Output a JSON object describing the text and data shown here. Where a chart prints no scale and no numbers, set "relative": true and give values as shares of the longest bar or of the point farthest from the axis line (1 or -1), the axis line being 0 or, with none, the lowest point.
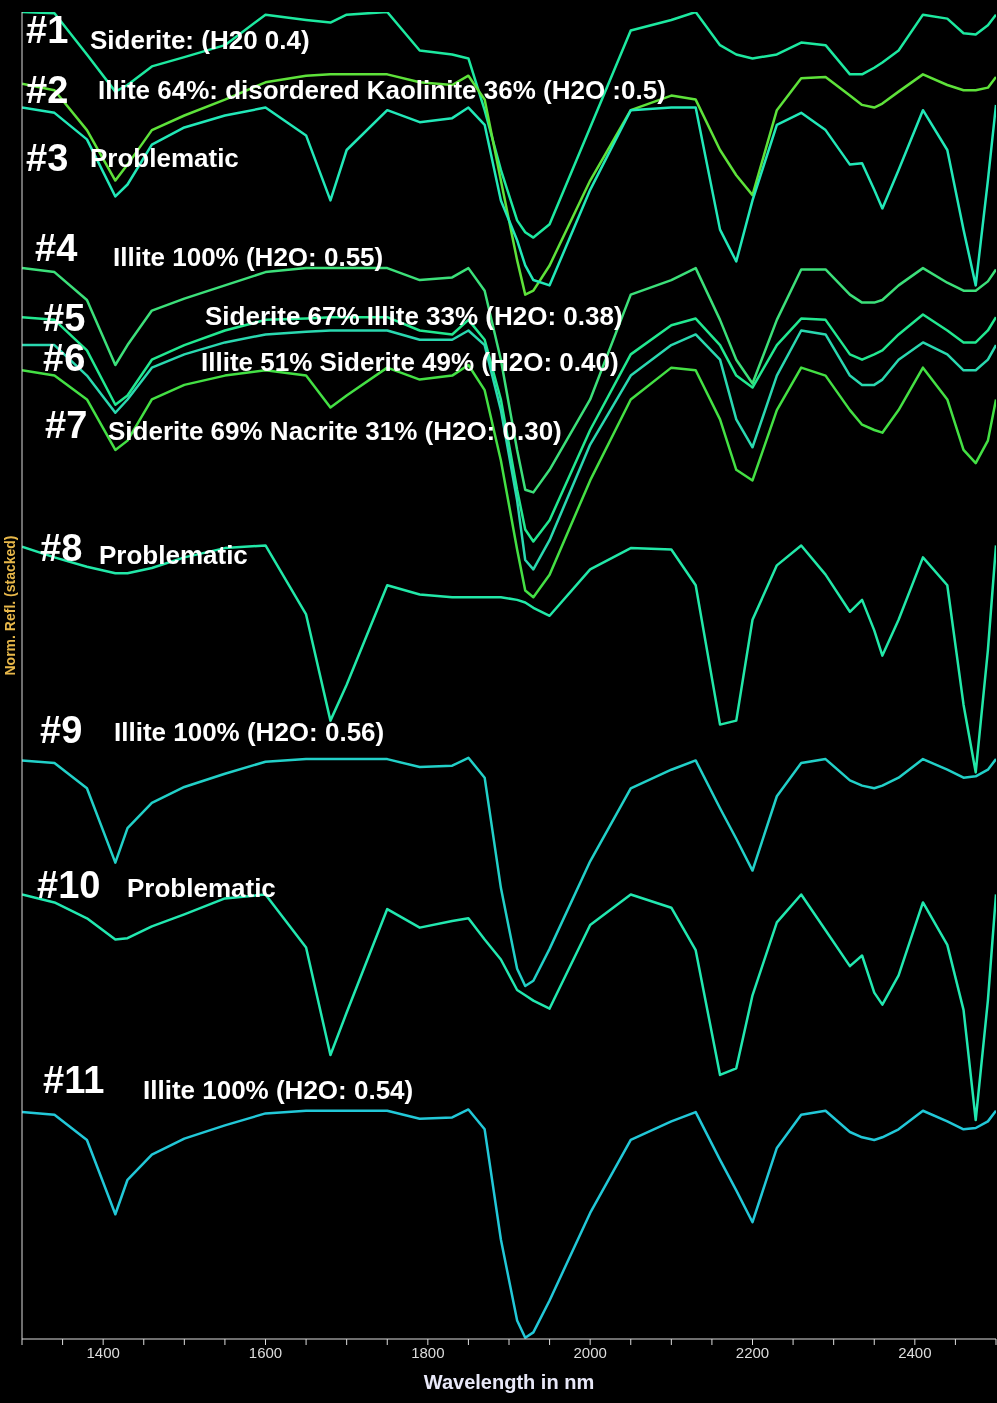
{
  "chart_data": {
    "type": "line",
    "relative": true,
    "xlabel": "Wavelength in nm",
    "ylabel": "Norm. Refl. (stacked)",
    "xlim": [
      1300,
      2500
    ],
    "xticks": [
      {
        "value": 1300,
        "label": null
      },
      {
        "value": 1350,
        "label": null
      },
      1400,
      {
        "value": 1450,
        "label": null
      },
      {
        "value": 1500,
        "label": null
      },
      {
        "value": 1550,
        "label": null
      },
      1600,
      {
        "value": 1650,
        "label": null
      },
      {
        "value": 1700,
        "label": null
      },
      {
        "value": 1750,
        "label": null
      },
      1800,
      {
        "value": 1850,
        "label": null
      },
      {
        "value": 1900,
        "label": null
      },
      {
        "value": 1950,
        "label": null
      },
      2000,
      {
        "value": 2050,
        "label": null
      },
      {
        "value": 2100,
        "label": null
      },
      {
        "value": 2150,
        "label": null
      },
      2200,
      {
        "value": 2250,
        "label": null
      },
      {
        "value": 2300,
        "label": null
      },
      {
        "value": 2350,
        "label": null
      },
      2400,
      {
        "value": 2450,
        "label": null
      },
      {
        "value": 2500,
        "label": null
      }
    ],
    "x": [
      1300,
      1340,
      1380,
      1415,
      1430,
      1460,
      1500,
      1550,
      1600,
      1650,
      1680,
      1700,
      1750,
      1790,
      1830,
      1850,
      1870,
      1890,
      1910,
      1920,
      1930,
      1950,
      2000,
      2050,
      2100,
      2130,
      2160,
      2180,
      2200,
      2230,
      2260,
      2290,
      2320,
      2335,
      2350,
      2360,
      2380,
      2410,
      2440,
      2460,
      2475,
      2490,
      2500
    ],
    "series": [
      {
        "name": "#1",
        "color": "#1de9a0",
        "values": [
          1.0,
          0.999,
          0.968,
          0.94,
          0.945,
          0.959,
          0.966,
          0.975,
          0.998,
          0.994,
          0.992,
          0.998,
          1.0,
          0.971,
          0.968,
          0.965,
          0.926,
          0.881,
          0.843,
          0.834,
          0.83,
          0.84,
          0.913,
          0.986,
          0.994,
          1.0,
          0.975,
          0.968,
          0.965,
          0.968,
          0.977,
          0.975,
          0.953,
          0.953,
          0.958,
          0.962,
          0.971,
          0.998,
          0.995,
          0.984,
          0.983,
          0.99,
          0.998
        ]
      },
      {
        "name": "#2",
        "color": "#5ee23a",
        "values": [
          0.946,
          0.941,
          0.911,
          0.873,
          0.885,
          0.911,
          0.922,
          0.934,
          0.947,
          0.952,
          0.953,
          0.953,
          0.953,
          0.947,
          0.945,
          0.952,
          0.934,
          0.873,
          0.813,
          0.787,
          0.79,
          0.809,
          0.873,
          0.926,
          0.937,
          0.934,
          0.896,
          0.877,
          0.862,
          0.926,
          0.95,
          0.951,
          0.937,
          0.93,
          0.928,
          0.931,
          0.94,
          0.953,
          0.945,
          0.941,
          0.941,
          0.943,
          0.951
        ]
      },
      {
        "name": "#3",
        "color": "#22e8b8",
        "values": [
          0.928,
          0.924,
          0.904,
          0.861,
          0.87,
          0.9,
          0.913,
          0.922,
          0.928,
          0.907,
          0.858,
          0.896,
          0.926,
          0.917,
          0.92,
          0.928,
          0.915,
          0.858,
          0.828,
          0.809,
          0.798,
          0.794,
          0.866,
          0.926,
          0.928,
          0.928,
          0.836,
          0.812,
          0.858,
          0.915,
          0.924,
          0.911,
          0.885,
          0.886,
          0.866,
          0.852,
          0.881,
          0.926,
          0.896,
          0.836,
          0.794,
          0.873,
          0.93
        ]
      },
      {
        "name": "#4",
        "color": "#3ce07a",
        "values": [
          0.807,
          0.804,
          0.783,
          0.734,
          0.749,
          0.775,
          0.784,
          0.794,
          0.804,
          0.807,
          0.807,
          0.807,
          0.807,
          0.798,
          0.8,
          0.807,
          0.79,
          0.738,
          0.67,
          0.64,
          0.638,
          0.655,
          0.708,
          0.787,
          0.798,
          0.807,
          0.768,
          0.738,
          0.72,
          0.768,
          0.806,
          0.806,
          0.787,
          0.781,
          0.781,
          0.783,
          0.794,
          0.807,
          0.796,
          0.79,
          0.79,
          0.797,
          0.806
        ]
      },
      {
        "name": "#5",
        "color": "#22e890",
        "values": [
          0.77,
          0.768,
          0.745,
          0.704,
          0.711,
          0.738,
          0.749,
          0.76,
          0.768,
          0.769,
          0.77,
          0.77,
          0.77,
          0.76,
          0.757,
          0.768,
          0.753,
          0.708,
          0.64,
          0.61,
          0.601,
          0.617,
          0.685,
          0.742,
          0.764,
          0.769,
          0.749,
          0.726,
          0.717,
          0.749,
          0.769,
          0.768,
          0.742,
          0.738,
          0.742,
          0.745,
          0.757,
          0.772,
          0.76,
          0.751,
          0.751,
          0.76,
          0.77
        ]
      },
      {
        "name": "#6",
        "color": "#2ad8b0",
        "values": [
          0.749,
          0.749,
          0.726,
          0.698,
          0.708,
          0.732,
          0.742,
          0.751,
          0.757,
          0.759,
          0.76,
          0.76,
          0.76,
          0.753,
          0.753,
          0.76,
          0.749,
          0.7,
          0.632,
          0.587,
          0.58,
          0.602,
          0.674,
          0.726,
          0.749,
          0.757,
          0.738,
          0.693,
          0.672,
          0.726,
          0.76,
          0.757,
          0.726,
          0.719,
          0.719,
          0.723,
          0.738,
          0.751,
          0.742,
          0.73,
          0.73,
          0.738,
          0.749
        ]
      },
      {
        "name": "#7",
        "color": "#44e044",
        "values": [
          0.73,
          0.726,
          0.708,
          0.67,
          0.677,
          0.708,
          0.719,
          0.726,
          0.73,
          0.726,
          0.702,
          0.711,
          0.732,
          0.723,
          0.726,
          0.734,
          0.715,
          0.662,
          0.595,
          0.564,
          0.559,
          0.576,
          0.647,
          0.708,
          0.732,
          0.73,
          0.693,
          0.655,
          0.647,
          0.7,
          0.732,
          0.726,
          0.7,
          0.689,
          0.685,
          0.683,
          0.7,
          0.732,
          0.708,
          0.67,
          0.66,
          0.677,
          0.708
        ]
      },
      {
        "name": "#8",
        "color": "#22e8a8",
        "values": [
          0.597,
          0.589,
          0.582,
          0.577,
          0.577,
          0.581,
          0.589,
          0.596,
          0.598,
          0.546,
          0.466,
          0.493,
          0.568,
          0.561,
          0.559,
          0.559,
          0.559,
          0.559,
          0.557,
          0.555,
          0.551,
          0.545,
          0.58,
          0.596,
          0.595,
          0.568,
          0.463,
          0.466,
          0.542,
          0.583,
          0.598,
          0.576,
          0.548,
          0.557,
          0.534,
          0.515,
          0.542,
          0.589,
          0.568,
          0.478,
          0.427,
          0.519,
          0.598
        ]
      },
      {
        "name": "#9",
        "color": "#22d0c8",
        "values": [
          0.436,
          0.434,
          0.415,
          0.359,
          0.385,
          0.404,
          0.416,
          0.426,
          0.435,
          0.437,
          0.437,
          0.437,
          0.437,
          0.431,
          0.432,
          0.438,
          0.423,
          0.34,
          0.279,
          0.266,
          0.27,
          0.294,
          0.36,
          0.415,
          0.429,
          0.436,
          0.4,
          0.377,
          0.353,
          0.409,
          0.434,
          0.437,
          0.421,
          0.417,
          0.415,
          0.417,
          0.423,
          0.437,
          0.429,
          0.423,
          0.424,
          0.429,
          0.437
        ]
      },
      {
        "name": "#10",
        "color": "#22e8b0",
        "values": [
          0.335,
          0.329,
          0.317,
          0.301,
          0.302,
          0.311,
          0.32,
          0.332,
          0.335,
          0.295,
          0.214,
          0.246,
          0.324,
          0.31,
          0.315,
          0.317,
          0.301,
          0.286,
          0.263,
          0.259,
          0.255,
          0.249,
          0.312,
          0.335,
          0.325,
          0.293,
          0.199,
          0.204,
          0.259,
          0.314,
          0.335,
          0.308,
          0.281,
          0.289,
          0.261,
          0.252,
          0.274,
          0.329,
          0.297,
          0.248,
          0.165,
          0.255,
          0.335
        ]
      },
      {
        "name": "#11",
        "color": "#22c8d8",
        "values": [
          0.171,
          0.169,
          0.15,
          0.094,
          0.12,
          0.139,
          0.151,
          0.161,
          0.17,
          0.172,
          0.172,
          0.172,
          0.172,
          0.166,
          0.167,
          0.173,
          0.158,
          0.075,
          0.014,
          0.001,
          0.005,
          0.029,
          0.095,
          0.15,
          0.164,
          0.171,
          0.135,
          0.112,
          0.088,
          0.144,
          0.169,
          0.172,
          0.156,
          0.152,
          0.15,
          0.152,
          0.158,
          0.172,
          0.164,
          0.158,
          0.159,
          0.164,
          0.172
        ]
      }
    ],
    "annotations": [
      "Siderite: (H20 0.4)",
      "Illite 64%: disordered Kaolinite 36% (H2O :0.5)",
      "Problematic",
      "Illite 100% (H2O: 0.55)",
      "Siderite 67% Illite 33% (H2O: 0.38)",
      "Illite 51% Siderite 49% (H2O: 0.40)",
      "Siderite 69%  Nacrite 31% (H2O: 0.30)",
      "Problematic",
      "Illite 100%  (H2O: 0.56)",
      "Problematic",
      "Illite 100%  (H2O: 0.54)"
    ]
  }
}
